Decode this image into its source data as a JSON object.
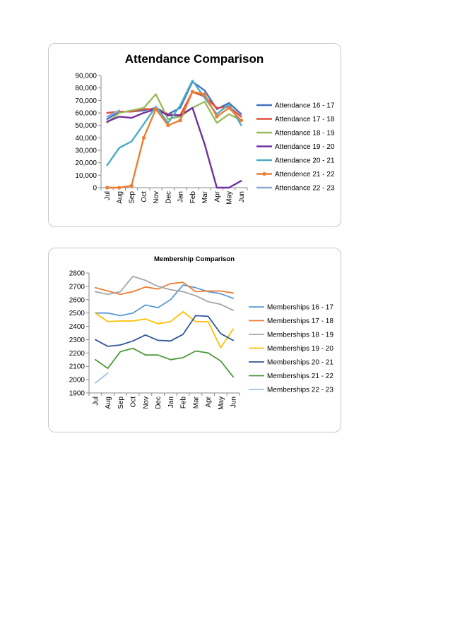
{
  "chart_data": [
    {
      "type": "line",
      "title": "Attendance Comparison",
      "xlabel": "",
      "ylabel": "",
      "ylim": [
        0,
        90000
      ],
      "yticks": [
        "0",
        "10,000",
        "20,000",
        "30,000",
        "40,000",
        "50,000",
        "60,000",
        "70,000",
        "80,000",
        "90,000"
      ],
      "categories": [
        "Jul",
        "Aug",
        "Sep",
        "Oct",
        "Nov",
        "Dec",
        "Jan",
        "Feb",
        "Mar",
        "Apr",
        "May",
        "Jun"
      ],
      "grid": false,
      "legend": "right",
      "series": [
        {
          "name": "Attendance 16 - 17",
          "color": "#4472C4",
          "marker": false,
          "values": [
            55000,
            61000,
            61000,
            62000,
            64000,
            59000,
            64000,
            85000,
            78000,
            63000,
            68000,
            59000
          ]
        },
        {
          "name": "Attendance 17 - 18",
          "color": "#E04B3A",
          "marker": false,
          "values": [
            60000,
            61000,
            61000,
            63000,
            63000,
            59000,
            58000,
            77000,
            73000,
            64000,
            65000,
            57000
          ]
        },
        {
          "name": "Attendance 18 - 19",
          "color": "#9BBB59",
          "marker": false,
          "values": [
            52000,
            60000,
            62000,
            64000,
            75000,
            55000,
            57000,
            64000,
            69000,
            52000,
            59000,
            54000
          ]
        },
        {
          "name": "Attendance 19 - 20",
          "color": "#7030A0",
          "marker": false,
          "values": [
            53000,
            57000,
            56000,
            60000,
            63000,
            58000,
            58000,
            64000,
            35000,
            0,
            0,
            5500
          ]
        },
        {
          "name": "Attendance 20 - 21",
          "color": "#4BACC6",
          "marker": false,
          "values": [
            18000,
            32000,
            37000,
            51000,
            65000,
            52000,
            66000,
            86000,
            72000,
            59000,
            67000,
            50000
          ]
        },
        {
          "name": "Attendence 21 - 22",
          "color": "#ED7D31",
          "marker": true,
          "values": [
            0,
            0,
            1500,
            40000,
            63000,
            50000,
            54000,
            77000,
            75000,
            57000,
            64000,
            54000
          ]
        },
        {
          "name": "Attendance 22 - 23",
          "color": "#8EA9DB",
          "marker": false,
          "values": [
            57000,
            62000,
            null,
            null,
            null,
            null,
            null,
            null,
            null,
            null,
            null,
            null
          ]
        }
      ]
    },
    {
      "type": "line",
      "title": "Membership Comparison",
      "xlabel": "",
      "ylabel": "",
      "ylim": [
        1900,
        2800
      ],
      "yticks": [
        "1900",
        "2000",
        "2100",
        "2200",
        "2300",
        "2400",
        "2500",
        "2600",
        "2700",
        "2800"
      ],
      "categories": [
        "Jul",
        "Aug",
        "Sep",
        "Oct",
        "Nov",
        "Dec",
        "Jan",
        "Feb",
        "Mar",
        "Apr",
        "May",
        "Jun"
      ],
      "grid": false,
      "legend": "right",
      "series": [
        {
          "name": "Memberships 16 - 17",
          "color": "#5B9BD5",
          "values": [
            2500,
            2500,
            2480,
            2500,
            2560,
            2540,
            2600,
            2710,
            2690,
            2660,
            2645,
            2610
          ]
        },
        {
          "name": "Memberships 17 - 18",
          "color": "#ED7D31",
          "values": [
            2690,
            2665,
            2640,
            2660,
            2695,
            2680,
            2720,
            2730,
            2660,
            2665,
            2665,
            2650
          ]
        },
        {
          "name": "Memberships 18 - 19",
          "color": "#A5A5A5",
          "values": [
            2660,
            2640,
            2660,
            2775,
            2745,
            2700,
            2675,
            2660,
            2630,
            2585,
            2565,
            2520
          ]
        },
        {
          "name": "Memberships 19 - 20",
          "color": "#FFC000",
          "values": [
            2500,
            2435,
            2440,
            2440,
            2455,
            2420,
            2435,
            2510,
            2435,
            2435,
            2240,
            2380
          ]
        },
        {
          "name": "Memberships 20 - 21",
          "color": "#2F5597",
          "values": [
            2300,
            2250,
            2260,
            2290,
            2335,
            2295,
            2290,
            2340,
            2480,
            2475,
            2345,
            2295
          ]
        },
        {
          "name": "Memberships 21 - 22",
          "color": "#4E9A3A",
          "values": [
            2150,
            2085,
            2210,
            2235,
            2185,
            2185,
            2150,
            2165,
            2215,
            2200,
            2140,
            2020
          ]
        },
        {
          "name": "Memberships 22 - 23",
          "color": "#9DC3E6",
          "values": [
            1975,
            2050,
            null,
            null,
            null,
            null,
            null,
            null,
            null,
            null,
            null,
            null
          ]
        }
      ]
    }
  ]
}
